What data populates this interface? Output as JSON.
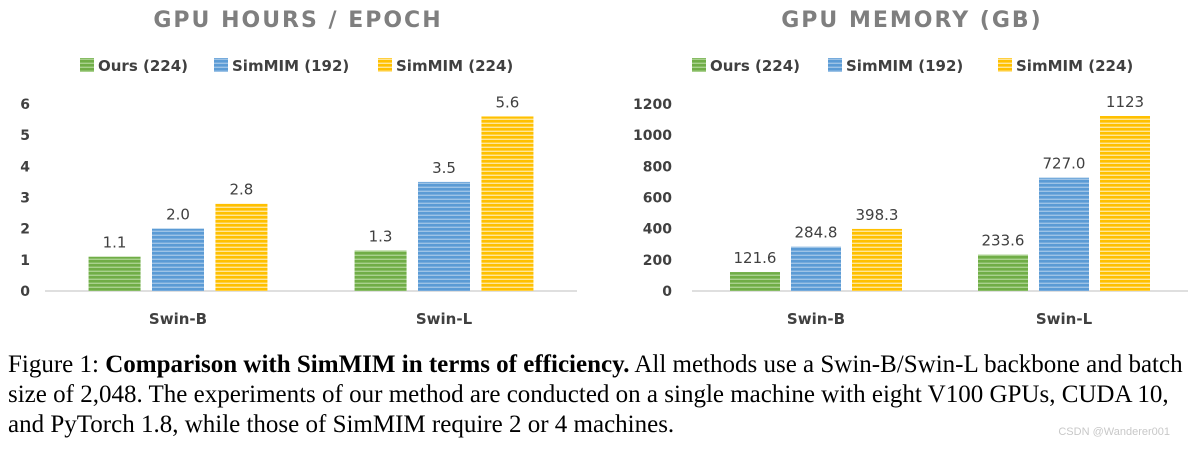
{
  "colors": {
    "green": "#70ad47",
    "blue": "#5b9bd5",
    "yellow": "#ffc000"
  },
  "chart_data": [
    {
      "type": "bar",
      "title": "GPU HOURS / EPOCH",
      "categories": [
        "Swin-B",
        "Swin-L"
      ],
      "series": [
        {
          "name": "Ours (224)",
          "values": [
            1.1,
            1.3
          ],
          "labels": [
            "1.1",
            "1.3"
          ]
        },
        {
          "name": "SimMIM (192)",
          "values": [
            2.0,
            3.5
          ],
          "labels": [
            "2.0",
            "3.5"
          ]
        },
        {
          "name": "SimMIM (224)",
          "values": [
            2.8,
            5.6
          ],
          "labels": [
            "2.8",
            "5.6"
          ]
        }
      ],
      "ylim": [
        0,
        6
      ],
      "yticks": [
        0,
        1,
        2,
        3,
        4,
        5,
        6
      ],
      "xlabel": "",
      "ylabel": "",
      "legend": "top"
    },
    {
      "type": "bar",
      "title": "GPU MEMORY (GB)",
      "categories": [
        "Swin-B",
        "Swin-L"
      ],
      "series": [
        {
          "name": "Ours (224)",
          "values": [
            121.6,
            233.6
          ],
          "labels": [
            "121.6",
            "233.6"
          ]
        },
        {
          "name": "SimMIM (192)",
          "values": [
            284.8,
            727.0
          ],
          "labels": [
            "284.8",
            "727.0"
          ]
        },
        {
          "name": "SimMIM (224)",
          "values": [
            398.3,
            1123
          ],
          "labels": [
            "398.3",
            "1123"
          ]
        }
      ],
      "ylim": [
        0,
        1200
      ],
      "yticks": [
        0,
        200,
        400,
        600,
        800,
        1000,
        1200
      ],
      "xlabel": "",
      "ylabel": "",
      "legend": "top"
    }
  ],
  "caption": {
    "prefix": "Figure 1: ",
    "bold": "Comparison with SimMIM in terms of efficiency.",
    "rest": " All methods use a Swin-B/Swin-L backbone and batch size of 2,048. The experiments of our method are conducted on a single machine with eight V100 GPUs, CUDA 10, and PyTorch 1.8, while those of SimMIM require 2 or 4 machines."
  },
  "watermark": "CSDN @Wanderer001"
}
